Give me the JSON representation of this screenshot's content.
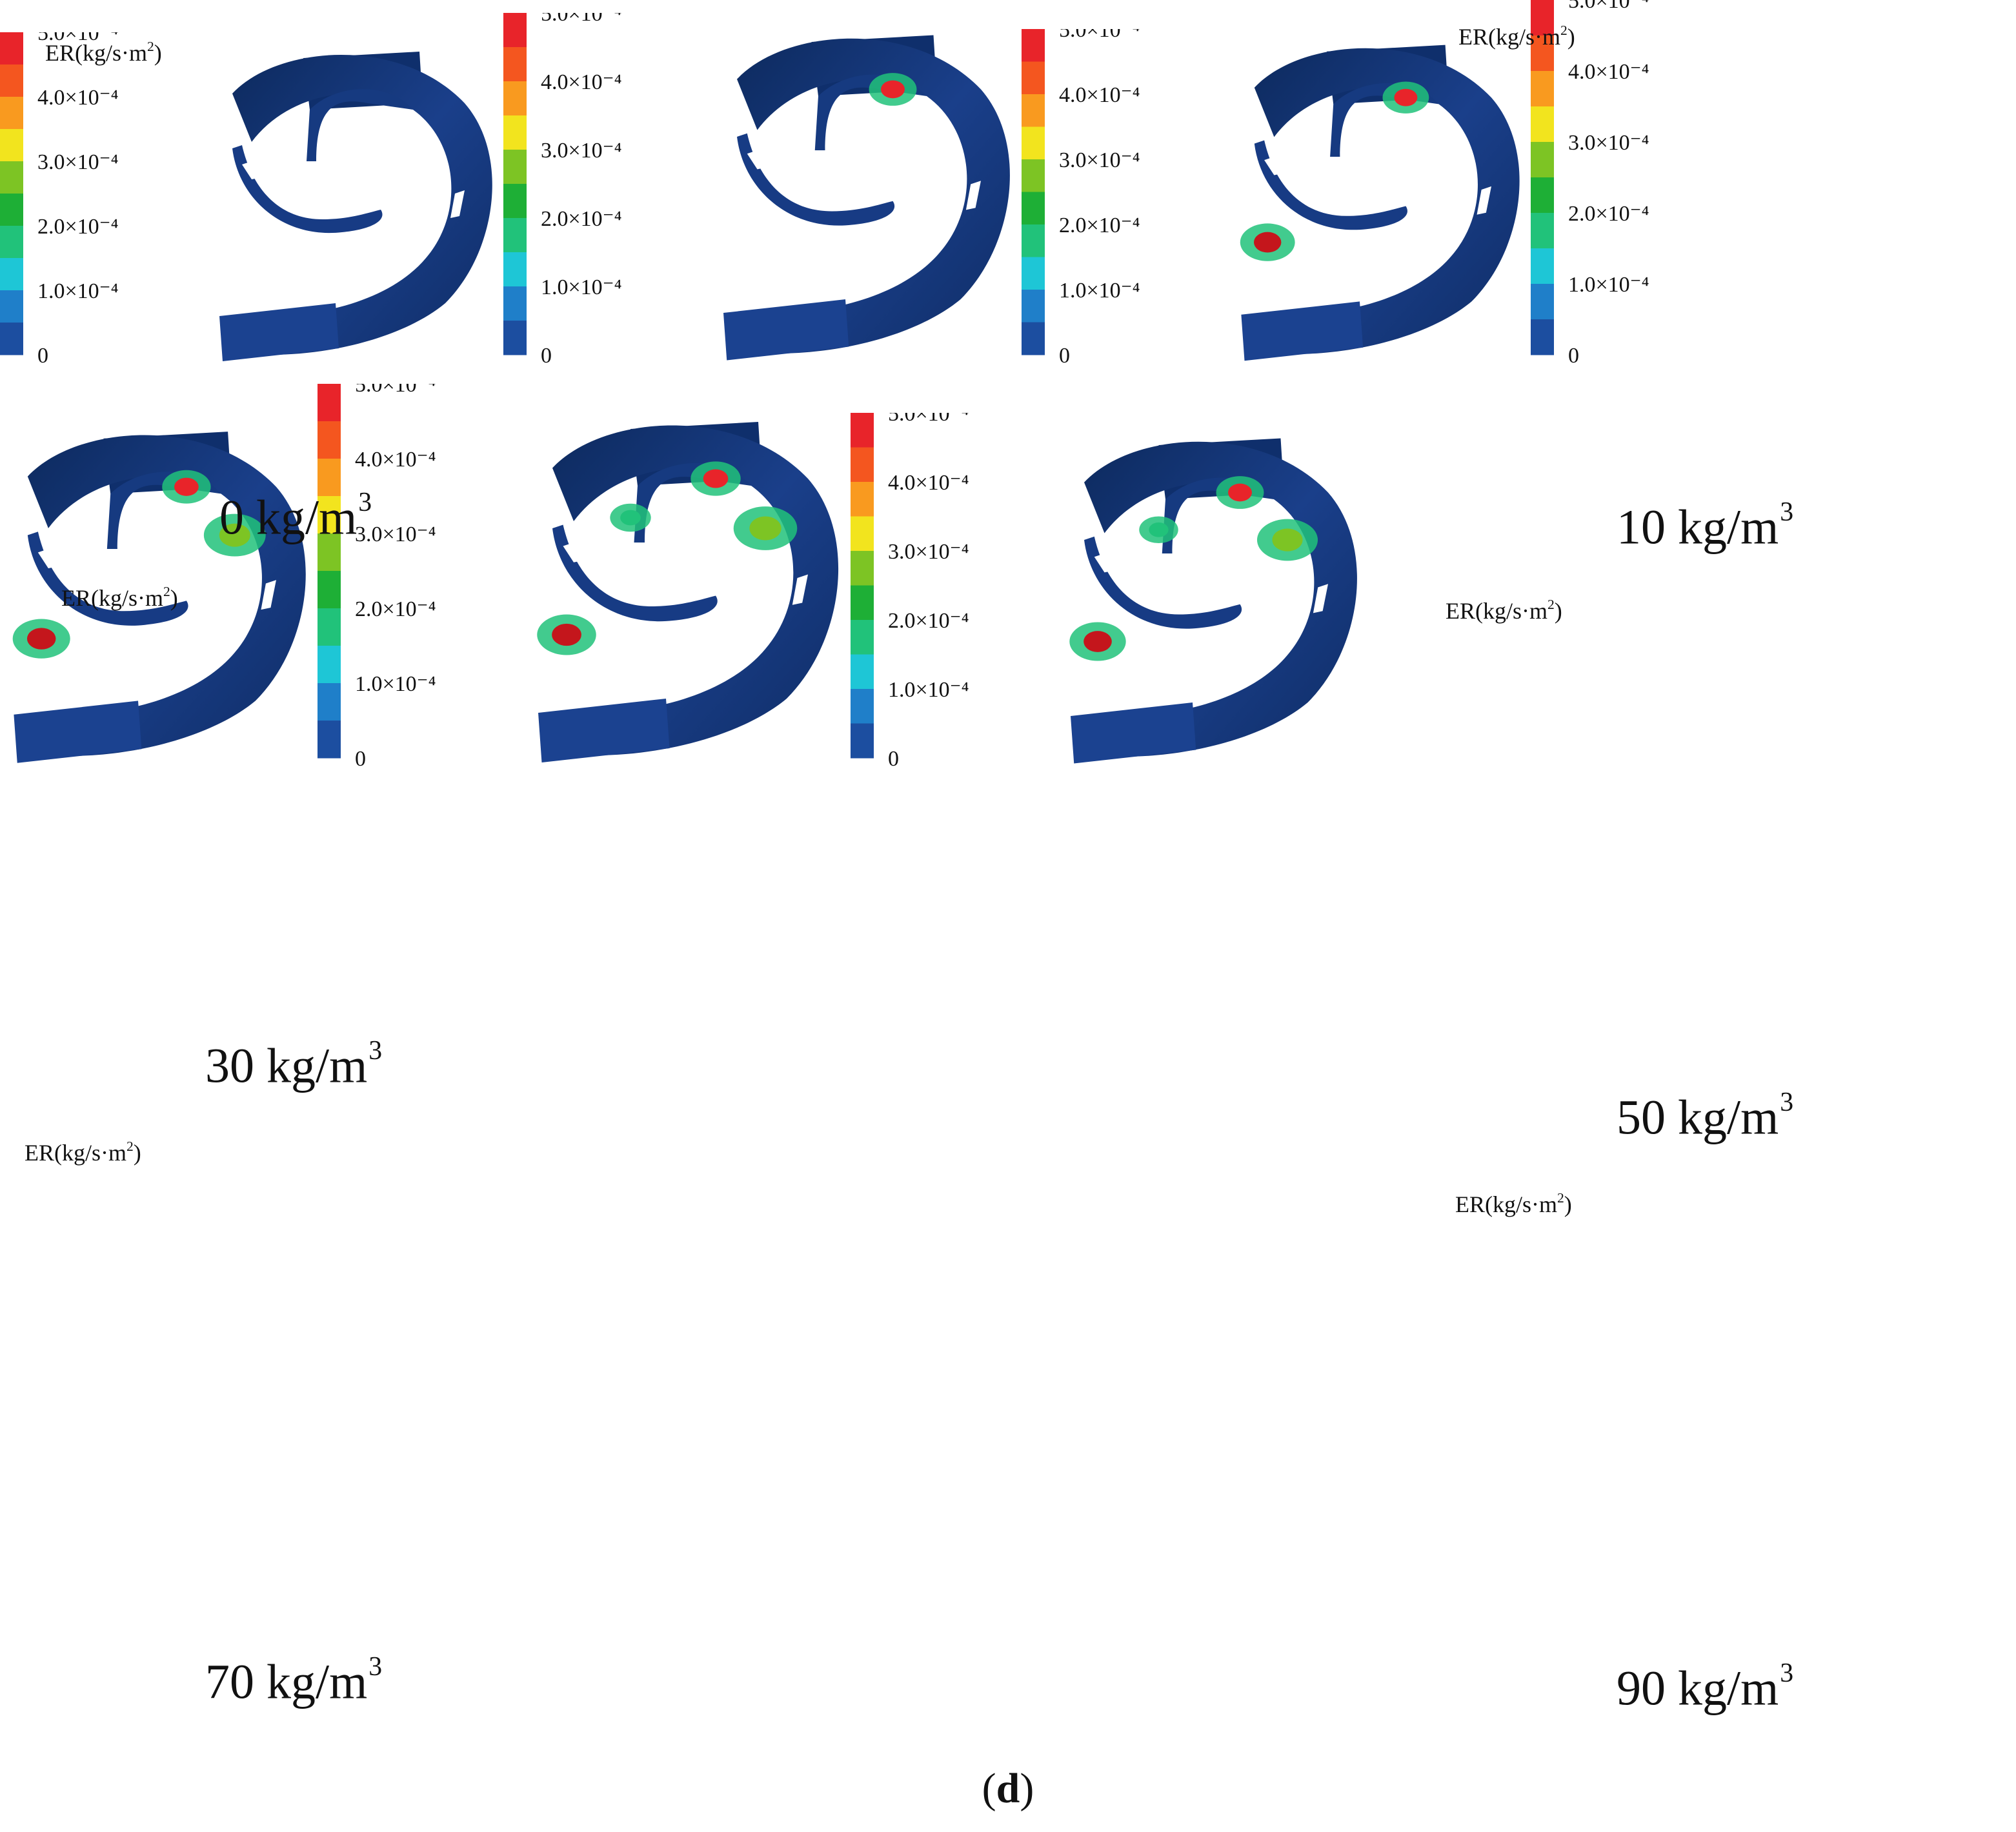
{
  "colorbar": {
    "title_prefix": "ER(kg/s·m",
    "title_sup": "2",
    "title_suffix": ")",
    "ticks": [
      "5.0×10⁻⁴",
      "4.0×10⁻⁴",
      "3.0×10⁻⁴",
      "2.0×10⁻⁴",
      "1.0×10⁻⁴",
      "0"
    ],
    "tick_values": [
      0.0005,
      0.0004,
      0.0003,
      0.0002,
      0.0001,
      0
    ],
    "range": [
      0,
      0.0005
    ],
    "colors": [
      "#e8242a",
      "#f4561f",
      "#f99a1f",
      "#f2e41e",
      "#7dc424",
      "#1eaf36",
      "#21c27a",
      "#1ec6d6",
      "#1f7fc9",
      "#1c4ea0"
    ]
  },
  "panels": [
    {
      "caption_value": "0 kg/m",
      "caption_sup": "3",
      "hotspots": 0
    },
    {
      "caption_value": "10 kg/m",
      "caption_sup": "3",
      "hotspots": 1
    },
    {
      "caption_value": "30 kg/m",
      "caption_sup": "3",
      "hotspots": 2
    },
    {
      "caption_value": "50 kg/m",
      "caption_sup": "3",
      "hotspots": 3
    },
    {
      "caption_value": "70 kg/m",
      "caption_sup": "3",
      "hotspots": 4
    },
    {
      "caption_value": "90 kg/m",
      "caption_sup": "3",
      "hotspots": 5
    }
  ],
  "figure_label": {
    "open": "(",
    "letter": "d",
    "close": ")"
  }
}
